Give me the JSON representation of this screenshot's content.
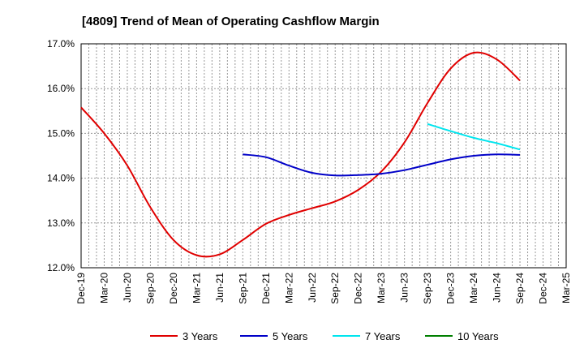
{
  "chart_data": {
    "type": "line",
    "title": "[4809]  Trend of Mean of Operating Cashflow Margin",
    "xlabel": "",
    "ylabel": "",
    "ylim": [
      12.0,
      17.0
    ],
    "yticks": [
      "12.0%",
      "13.0%",
      "14.0%",
      "15.0%",
      "16.0%",
      "17.0%"
    ],
    "ytick_values": [
      12,
      13,
      14,
      15,
      16,
      17
    ],
    "categories": [
      "Dec-19",
      "Mar-20",
      "Jun-20",
      "Sep-20",
      "Dec-20",
      "Mar-21",
      "Jun-21",
      "Sep-21",
      "Dec-21",
      "Mar-22",
      "Jun-22",
      "Sep-22",
      "Dec-22",
      "Mar-23",
      "Jun-23",
      "Sep-23",
      "Dec-23",
      "Mar-24",
      "Jun-24",
      "Sep-24",
      "Dec-24",
      "Mar-25"
    ],
    "grid": true,
    "legend_position": "bottom",
    "series": [
      {
        "name": "3 Years",
        "color": "#e00000",
        "values": [
          15.58,
          15.0,
          14.28,
          13.35,
          12.62,
          12.28,
          12.3,
          12.62,
          12.98,
          13.18,
          13.33,
          13.48,
          13.74,
          14.15,
          14.8,
          15.68,
          16.45,
          16.8,
          16.65,
          16.18,
          null,
          null
        ]
      },
      {
        "name": "5 Years",
        "color": "#0000c8",
        "values": [
          null,
          null,
          null,
          null,
          null,
          null,
          null,
          14.53,
          14.47,
          14.28,
          14.12,
          14.06,
          14.07,
          14.1,
          14.18,
          14.3,
          14.42,
          14.5,
          14.53,
          14.52,
          null,
          null
        ]
      },
      {
        "name": "7 Years",
        "color": "#00e5ee",
        "values": [
          null,
          null,
          null,
          null,
          null,
          null,
          null,
          null,
          null,
          null,
          null,
          null,
          null,
          null,
          null,
          15.21,
          15.05,
          14.9,
          14.78,
          14.64,
          null,
          null
        ]
      },
      {
        "name": "10 Years",
        "color": "#007f00",
        "values": [
          null,
          null,
          null,
          null,
          null,
          null,
          null,
          null,
          null,
          null,
          null,
          null,
          null,
          null,
          null,
          null,
          null,
          null,
          null,
          null,
          null,
          null
        ]
      }
    ]
  }
}
